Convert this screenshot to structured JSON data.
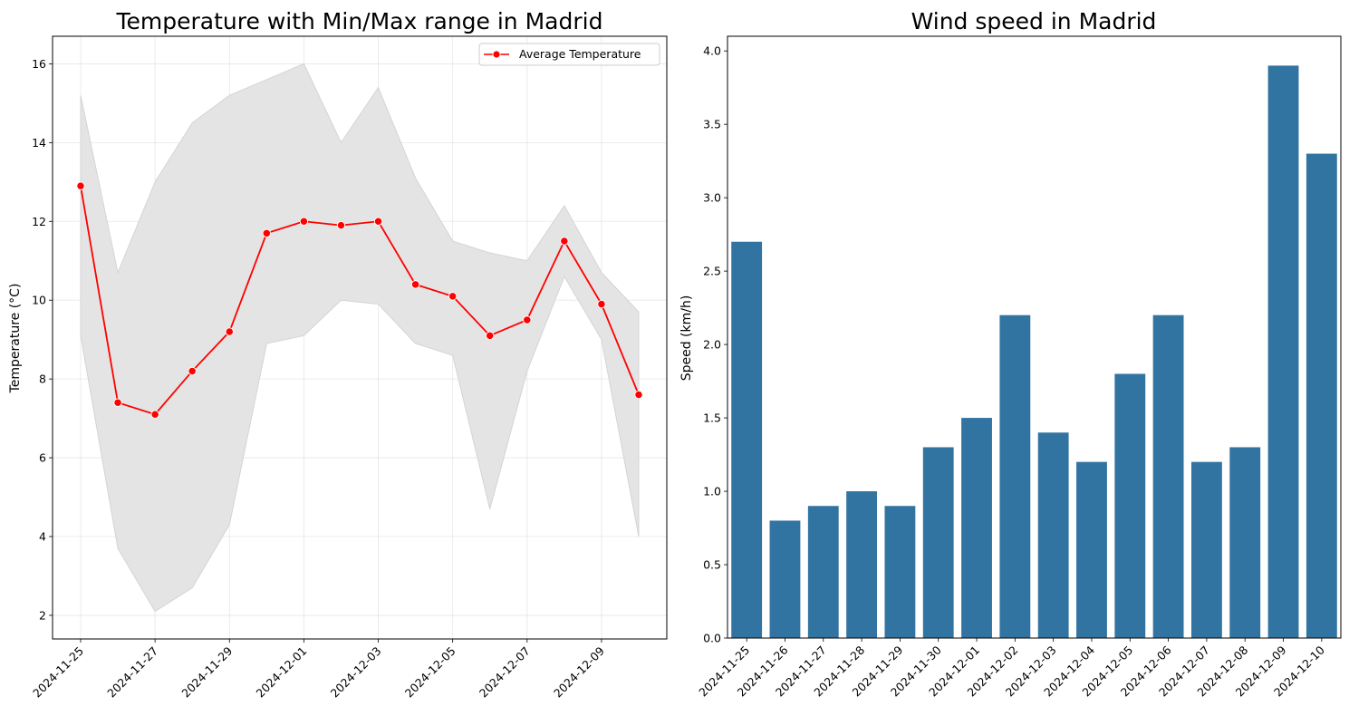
{
  "chart_data": [
    {
      "type": "line",
      "title": "Temperature with Min/Max range in Madrid",
      "xlabel": "",
      "ylabel": "Temperature (°C)",
      "x": [
        "2024-11-25",
        "2024-11-26",
        "2024-11-27",
        "2024-11-28",
        "2024-11-29",
        "2024-11-30",
        "2024-12-01",
        "2024-12-02",
        "2024-12-03",
        "2024-12-04",
        "2024-12-05",
        "2024-12-06",
        "2024-12-07",
        "2024-12-08",
        "2024-12-09",
        "2024-12-10"
      ],
      "x_tick_labels": [
        "2024-11-25",
        "2024-11-27",
        "2024-11-29",
        "2024-12-01",
        "2024-12-03",
        "2024-12-05",
        "2024-12-07",
        "2024-12-09"
      ],
      "y_ticks": [
        2,
        4,
        6,
        8,
        10,
        12,
        14,
        16
      ],
      "ylim": [
        1.4,
        16.7
      ],
      "grid": true,
      "legend_position": "top-right",
      "series": [
        {
          "name": "Average Temperature",
          "color": "#ff0000",
          "marker": "circle",
          "values": [
            12.9,
            7.4,
            7.1,
            8.2,
            9.2,
            11.7,
            12.0,
            11.9,
            12.0,
            10.4,
            10.1,
            9.1,
            9.5,
            11.5,
            9.9,
            7.6
          ]
        }
      ],
      "band": {
        "color": "#e4e4e4",
        "min": [
          9.1,
          3.7,
          2.1,
          2.7,
          4.3,
          8.9,
          9.1,
          10.0,
          9.9,
          8.9,
          8.6,
          4.7,
          8.2,
          10.6,
          9.0,
          4.0
        ],
        "max": [
          15.2,
          10.7,
          13.0,
          14.5,
          15.2,
          15.6,
          16.0,
          14.0,
          15.4,
          13.1,
          11.5,
          11.2,
          11.0,
          12.4,
          10.7,
          9.7
        ]
      }
    },
    {
      "type": "bar",
      "title": "Wind speed in Madrid",
      "xlabel": "",
      "ylabel": "Speed (km/h)",
      "categories": [
        "2024-11-25",
        "2024-11-26",
        "2024-11-27",
        "2024-11-28",
        "2024-11-29",
        "2024-11-30",
        "2024-12-01",
        "2024-12-02",
        "2024-12-03",
        "2024-12-04",
        "2024-12-05",
        "2024-12-06",
        "2024-12-07",
        "2024-12-08",
        "2024-12-09",
        "2024-12-10"
      ],
      "values": [
        2.7,
        0.8,
        0.9,
        1.0,
        0.9,
        1.3,
        1.5,
        2.2,
        1.4,
        1.2,
        1.8,
        2.2,
        1.2,
        1.3,
        3.9,
        3.3
      ],
      "y_ticks": [
        "0.0",
        "0.5",
        "1.0",
        "1.5",
        "2.0",
        "2.5",
        "3.0",
        "3.5",
        "4.0"
      ],
      "ylim": [
        0,
        4.1
      ],
      "grid": false,
      "color": "#3274a1"
    }
  ]
}
